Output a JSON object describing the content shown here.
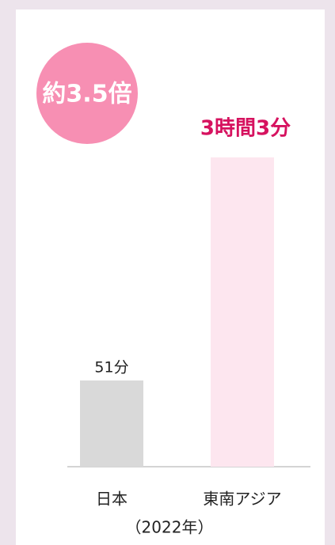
{
  "chart_data": {
    "type": "bar",
    "badge": "約3.5倍",
    "categories": [
      "日本",
      "東南アジア"
    ],
    "values": [
      51,
      183
    ],
    "value_labels": [
      "51分",
      "3時間3分"
    ],
    "colors": [
      "#d9d9d9",
      "#fde6ef"
    ],
    "note": "（2022年）"
  }
}
